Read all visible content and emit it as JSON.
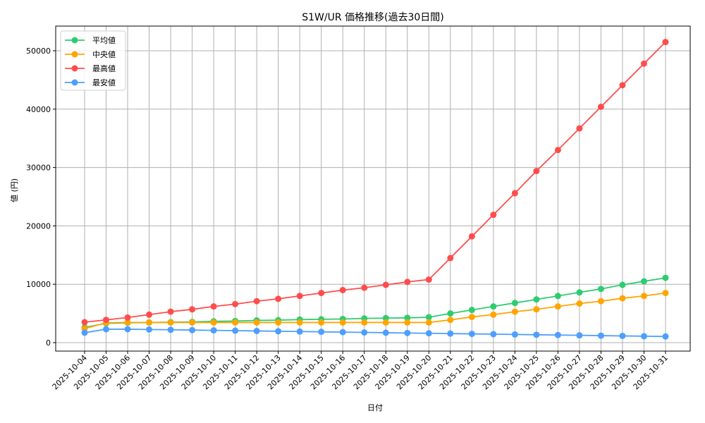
{
  "chart_data": {
    "type": "line",
    "title": "S1W/UR 価格推移(過去30日間)",
    "xlabel": "日付",
    "ylabel": "値 (円)",
    "ylim": [
      -1500,
      54000
    ],
    "yticks": [
      0,
      10000,
      20000,
      30000,
      40000,
      50000
    ],
    "grid": true,
    "legend_position": "upper left",
    "categories": [
      "2025-10-04",
      "2025-10-05",
      "2025-10-06",
      "2025-10-07",
      "2025-10-08",
      "2025-10-09",
      "2025-10-10",
      "2025-10-11",
      "2025-10-12",
      "2025-10-13",
      "2025-10-14",
      "2025-10-15",
      "2025-10-16",
      "2025-10-17",
      "2025-10-18",
      "2025-10-19",
      "2025-10-20",
      "2025-10-21",
      "2025-10-22",
      "2025-10-23",
      "2025-10-24",
      "2025-10-25",
      "2025-10-26",
      "2025-10-27",
      "2025-10-28",
      "2025-10-29",
      "2025-10-30",
      "2025-10-31"
    ],
    "series": [
      {
        "name": "平均値",
        "color": "#2ecc71",
        "values": [
          2600,
          3300,
          3400,
          3450,
          3500,
          3550,
          3650,
          3700,
          3800,
          3850,
          3950,
          4000,
          4050,
          4150,
          4200,
          4250,
          4350,
          5000,
          5600,
          6200,
          6800,
          7400,
          8000,
          8600,
          9200,
          9900,
          10500,
          11100
        ]
      },
      {
        "name": "中央値",
        "color": "#ffa500",
        "values": [
          2400,
          3400,
          3450,
          3450,
          3450,
          3450,
          3450,
          3450,
          3450,
          3450,
          3450,
          3450,
          3450,
          3450,
          3450,
          3450,
          3450,
          3900,
          4400,
          4800,
          5300,
          5700,
          6200,
          6700,
          7100,
          7600,
          8000,
          8500
        ]
      },
      {
        "name": "最高値",
        "color": "#ff4d4d",
        "values": [
          3500,
          3900,
          4300,
          4800,
          5300,
          5700,
          6200,
          6600,
          7100,
          7500,
          8000,
          8500,
          9000,
          9400,
          9900,
          10400,
          10800,
          14500,
          18200,
          21900,
          25600,
          29400,
          33000,
          36700,
          40400,
          44100,
          47800,
          51500
        ]
      },
      {
        "name": "最安値",
        "color": "#4d9fff",
        "values": [
          1700,
          2300,
          2300,
          2250,
          2200,
          2150,
          2100,
          2050,
          2000,
          1950,
          1900,
          1850,
          1800,
          1750,
          1700,
          1650,
          1600,
          1550,
          1500,
          1450,
          1400,
          1350,
          1300,
          1250,
          1200,
          1150,
          1100,
          1050
        ]
      }
    ]
  }
}
